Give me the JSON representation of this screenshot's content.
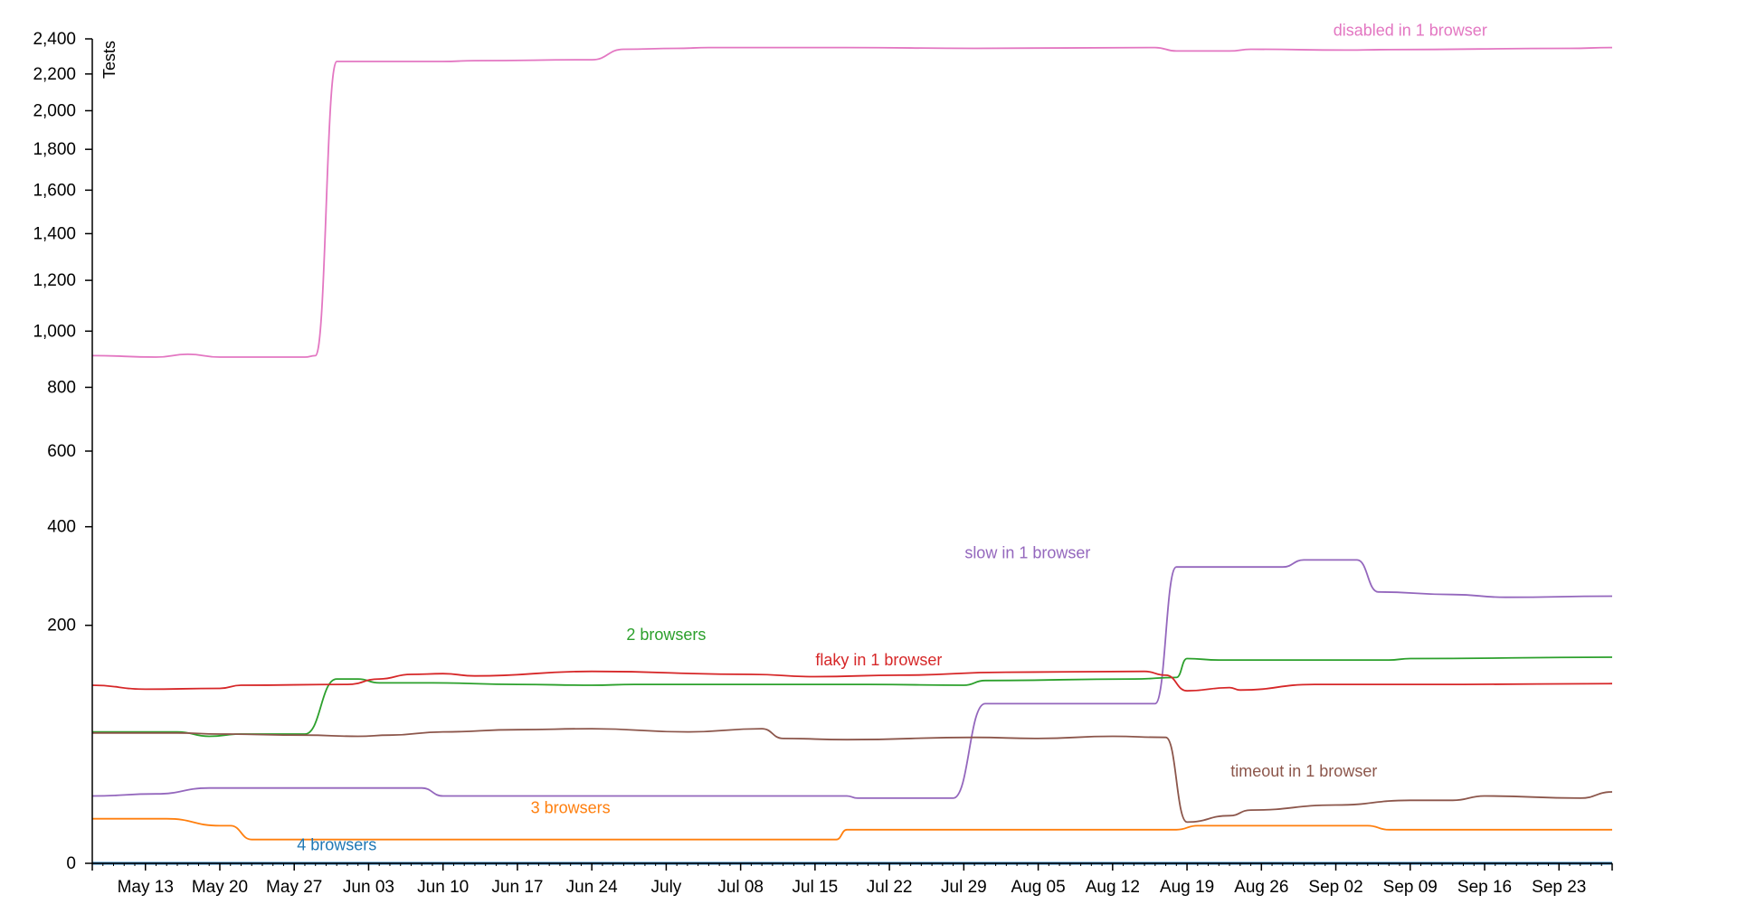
{
  "chart_data": {
    "type": "line",
    "ylabel": "Tests",
    "y_scale": "sqrt",
    "ylim": [
      0,
      2400
    ],
    "y_ticks": [
      0,
      200,
      400,
      600,
      800,
      1000,
      1200,
      1400,
      1600,
      1800,
      2000,
      2200,
      2400
    ],
    "y_tick_labels": [
      "0",
      "200",
      "400",
      "600",
      "800",
      "1,000",
      "1,200",
      "1,400",
      "1,600",
      "1,800",
      "2,000",
      "2,200",
      "2,400"
    ],
    "xlim": [
      "2019-05-08",
      "2019-09-28"
    ],
    "x_ticks": [
      "2019-05-13",
      "2019-05-20",
      "2019-05-27",
      "2019-06-03",
      "2019-06-10",
      "2019-06-17",
      "2019-06-24",
      "2019-07-01",
      "2019-07-08",
      "2019-07-15",
      "2019-07-22",
      "2019-07-29",
      "2019-08-05",
      "2019-08-12",
      "2019-08-19",
      "2019-08-26",
      "2019-09-02",
      "2019-09-09",
      "2019-09-16",
      "2019-09-23"
    ],
    "x_tick_labels": [
      "May 13",
      "May 20",
      "May 27",
      "Jun 03",
      "Jun 10",
      "Jun 17",
      "Jun 24",
      "July",
      "Jul 08",
      "Jul 15",
      "Jul 22",
      "Jul 29",
      "Aug 05",
      "Aug 12",
      "Aug 19",
      "Aug 26",
      "Sep 02",
      "Sep 09",
      "Sep 16",
      "Sep 23"
    ],
    "series": [
      {
        "name": "disabled in 1 browser",
        "color": "#e377c2",
        "label_x": "2019-09-09",
        "label_y": 2450,
        "label_anchor": "middle",
        "points": [
          [
            "2019-05-08",
            910
          ],
          [
            "2019-05-14",
            905
          ],
          [
            "2019-05-17",
            915
          ],
          [
            "2019-05-20",
            905
          ],
          [
            "2019-05-28",
            905
          ],
          [
            "2019-05-29",
            910
          ],
          [
            "2019-05-31",
            2270
          ],
          [
            "2019-06-10",
            2270
          ],
          [
            "2019-06-13",
            2275
          ],
          [
            "2019-06-24",
            2280
          ],
          [
            "2019-06-27",
            2340
          ],
          [
            "2019-07-02",
            2345
          ],
          [
            "2019-07-05",
            2350
          ],
          [
            "2019-07-18",
            2350
          ],
          [
            "2019-07-30",
            2345
          ],
          [
            "2019-08-16",
            2350
          ],
          [
            "2019-08-18",
            2330
          ],
          [
            "2019-08-23",
            2330
          ],
          [
            "2019-08-25",
            2340
          ],
          [
            "2019-09-03",
            2335
          ],
          [
            "2019-09-07",
            2338
          ],
          [
            "2019-09-24",
            2345
          ],
          [
            "2019-09-28",
            2350
          ]
        ]
      },
      {
        "name": "slow in 1 browser",
        "color": "#9467bd",
        "label_x": "2019-08-04",
        "label_y": 340,
        "label_anchor": "middle",
        "points": [
          [
            "2019-05-08",
            16
          ],
          [
            "2019-05-14",
            17
          ],
          [
            "2019-05-19",
            20
          ],
          [
            "2019-06-08",
            20
          ],
          [
            "2019-06-10",
            16
          ],
          [
            "2019-07-18",
            16
          ],
          [
            "2019-07-19",
            15
          ],
          [
            "2019-07-28",
            15
          ],
          [
            "2019-07-31",
            90
          ],
          [
            "2019-08-16",
            90
          ],
          [
            "2019-08-18",
            310
          ],
          [
            "2019-08-28",
            310
          ],
          [
            "2019-08-30",
            325
          ],
          [
            "2019-09-04",
            325
          ],
          [
            "2019-09-06",
            260
          ],
          [
            "2019-09-13",
            255
          ],
          [
            "2019-09-18",
            250
          ],
          [
            "2019-09-28",
            252
          ]
        ]
      },
      {
        "name": "2 browsers",
        "color": "#2ca02c",
        "label_x": "2019-07-01",
        "label_y": 185,
        "label_anchor": "middle",
        "points": [
          [
            "2019-05-08",
            61
          ],
          [
            "2019-05-16",
            61
          ],
          [
            "2019-05-19",
            57
          ],
          [
            "2019-05-22",
            59
          ],
          [
            "2019-05-28",
            59
          ],
          [
            "2019-05-31",
            120
          ],
          [
            "2019-06-02",
            120
          ],
          [
            "2019-06-04",
            115
          ],
          [
            "2019-06-09",
            115
          ],
          [
            "2019-06-17",
            113
          ],
          [
            "2019-06-24",
            112
          ],
          [
            "2019-06-28",
            113
          ],
          [
            "2019-07-20",
            113
          ],
          [
            "2019-07-29",
            112
          ],
          [
            "2019-07-31",
            118
          ],
          [
            "2019-08-14",
            120
          ],
          [
            "2019-08-18",
            122
          ],
          [
            "2019-08-19",
            148
          ],
          [
            "2019-08-22",
            146
          ],
          [
            "2019-09-07",
            146
          ],
          [
            "2019-09-09",
            148
          ],
          [
            "2019-09-28",
            150
          ]
        ]
      },
      {
        "name": "flaky in 1 browser",
        "color": "#d62728",
        "label_x": "2019-07-21",
        "label_y": 146,
        "label_anchor": "middle",
        "points": [
          [
            "2019-05-08",
            112
          ],
          [
            "2019-05-13",
            107
          ],
          [
            "2019-05-20",
            108
          ],
          [
            "2019-05-22",
            112
          ],
          [
            "2019-06-01",
            113
          ],
          [
            "2019-06-04",
            120
          ],
          [
            "2019-06-07",
            126
          ],
          [
            "2019-06-10",
            127
          ],
          [
            "2019-06-13",
            124
          ],
          [
            "2019-06-24",
            130
          ],
          [
            "2019-07-09",
            126
          ],
          [
            "2019-07-15",
            123
          ],
          [
            "2019-07-23",
            125
          ],
          [
            "2019-08-02",
            129
          ],
          [
            "2019-08-15",
            130
          ],
          [
            "2019-08-17",
            125
          ],
          [
            "2019-08-19",
            105
          ],
          [
            "2019-08-23",
            109
          ],
          [
            "2019-08-24",
            106
          ],
          [
            "2019-08-31",
            113
          ],
          [
            "2019-09-07",
            113
          ],
          [
            "2019-09-14",
            113
          ],
          [
            "2019-09-28",
            114
          ]
        ]
      },
      {
        "name": "timeout in 1 browser",
        "color": "#8c564b",
        "label_x": "2019-08-30",
        "label_y": 30,
        "label_anchor": "middle",
        "points": [
          [
            "2019-05-08",
            60
          ],
          [
            "2019-05-16",
            60
          ],
          [
            "2019-05-20",
            59
          ],
          [
            "2019-05-28",
            58
          ],
          [
            "2019-06-02",
            57
          ],
          [
            "2019-06-05",
            58
          ],
          [
            "2019-06-10",
            61
          ],
          [
            "2019-06-17",
            63
          ],
          [
            "2019-06-24",
            64
          ],
          [
            "2019-07-03",
            61
          ],
          [
            "2019-07-10",
            64
          ],
          [
            "2019-07-12",
            55
          ],
          [
            "2019-07-18",
            54
          ],
          [
            "2019-07-30",
            56
          ],
          [
            "2019-08-05",
            55
          ],
          [
            "2019-08-12",
            57
          ],
          [
            "2019-08-17",
            56
          ],
          [
            "2019-08-19",
            6
          ],
          [
            "2019-08-23",
            8
          ],
          [
            "2019-08-25",
            10
          ],
          [
            "2019-09-02",
            12
          ],
          [
            "2019-09-09",
            14
          ],
          [
            "2019-09-13",
            14
          ],
          [
            "2019-09-16",
            16
          ],
          [
            "2019-09-25",
            15
          ],
          [
            "2019-09-28",
            18
          ]
        ]
      },
      {
        "name": "3 browsers",
        "color": "#ff7f0e",
        "label_x": "2019-06-22",
        "label_y": 11,
        "label_anchor": "middle",
        "points": [
          [
            "2019-05-08",
            7
          ],
          [
            "2019-05-15",
            7
          ],
          [
            "2019-05-20",
            5
          ],
          [
            "2019-05-21",
            5
          ],
          [
            "2019-05-23",
            2
          ],
          [
            "2019-07-17",
            2
          ],
          [
            "2019-07-18",
            4
          ],
          [
            "2019-08-18",
            4
          ],
          [
            "2019-08-20",
            5
          ],
          [
            "2019-09-05",
            5
          ],
          [
            "2019-09-07",
            4
          ],
          [
            "2019-09-28",
            4
          ]
        ]
      },
      {
        "name": "4 browsers",
        "color": "#1f77b4",
        "label_x": "2019-05-31",
        "label_y": 1.2,
        "label_anchor": "middle",
        "points": [
          [
            "2019-05-08",
            0
          ],
          [
            "2019-09-28",
            0
          ]
        ]
      }
    ]
  }
}
